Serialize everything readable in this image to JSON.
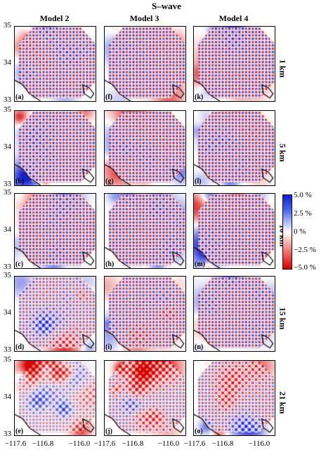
{
  "title": "S–wave",
  "columns": [
    "Model 2",
    "Model 3",
    "Model 4"
  ],
  "rows": [
    "1 km",
    "5 km",
    "10 km",
    "15 km",
    "21 km"
  ],
  "panel_labels": [
    [
      "(a)",
      "(f)",
      "(k)"
    ],
    [
      "(b)",
      "(g)",
      "(l)"
    ],
    [
      "(c)",
      "(h)",
      "(m)"
    ],
    [
      "(d)",
      "(i)",
      "(n)"
    ],
    [
      "(e)",
      "(j)",
      "(o)"
    ]
  ],
  "y_ticks": [
    "35",
    "34",
    "33"
  ],
  "x_ticks": [
    "−117.6",
    "−116.8",
    "−116.0"
  ],
  "colorbar": {
    "ticks": [
      "5.0 %",
      "2.5 %",
      "0 %",
      "−2.5 %",
      "−5.0 %"
    ],
    "colors": {
      "positive": "#1020d0",
      "zero": "#ffffff",
      "negative": "#d80000"
    }
  },
  "noise_levels": [
    [
      0.15,
      0.1,
      0.08
    ],
    [
      0.12,
      0.1,
      0.1
    ],
    [
      0.12,
      0.1,
      0.1
    ],
    [
      0.45,
      0.2,
      0.15
    ],
    [
      0.75,
      0.55,
      0.45
    ]
  ]
}
